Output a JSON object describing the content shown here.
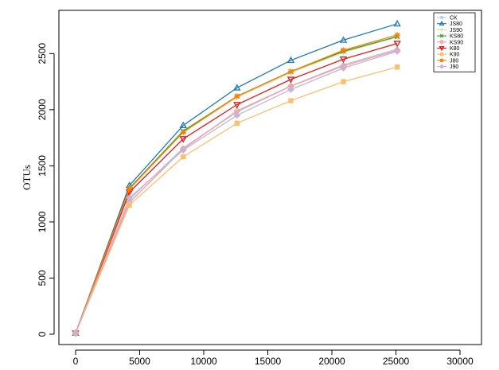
{
  "chart_data": {
    "type": "line",
    "title": "",
    "xlabel": "",
    "ylabel": "OTUs",
    "xlim": [
      0,
      30000
    ],
    "ylim": [
      0,
      2800
    ],
    "x_ticks": [
      0,
      5000,
      10000,
      15000,
      20000,
      25000,
      30000
    ],
    "y_ticks": [
      0,
      500,
      1000,
      1500,
      2000,
      2500
    ],
    "x": [
      0,
      4200,
      8400,
      12600,
      16800,
      20900,
      25100
    ],
    "grid": false,
    "legend_position": "top-right",
    "series": [
      {
        "name": "CK",
        "color": "#a6cee3",
        "marker": "circle",
        "values": [
          10,
          1200,
          1660,
          1980,
          2210,
          2400,
          2540
        ]
      },
      {
        "name": "JS80",
        "color": "#1f78b4",
        "marker": "triangle-up",
        "values": [
          10,
          1325,
          1860,
          2195,
          2440,
          2620,
          2765
        ]
      },
      {
        "name": "JS90",
        "color": "#d9d9a3",
        "marker": "plus",
        "values": [
          10,
          1290,
          1800,
          2110,
          2330,
          2510,
          2650
        ]
      },
      {
        "name": "KS80",
        "color": "#33a02c",
        "marker": "cross",
        "values": [
          10,
          1300,
          1810,
          2120,
          2340,
          2520,
          2650
        ]
      },
      {
        "name": "KS90",
        "color": "#fb9a99",
        "marker": "diamond-open",
        "values": [
          10,
          1175,
          1650,
          1990,
          2210,
          2390,
          2530
        ]
      },
      {
        "name": "K80",
        "color": "#e31a1c",
        "marker": "triangle-down",
        "values": [
          10,
          1265,
          1740,
          2045,
          2270,
          2450,
          2590
        ]
      },
      {
        "name": "K90",
        "color": "#fdbf6f",
        "marker": "square",
        "values": [
          10,
          1150,
          1580,
          1880,
          2080,
          2250,
          2380
        ]
      },
      {
        "name": "J80",
        "color": "#ff7f00",
        "marker": "asterisk",
        "values": [
          10,
          1295,
          1800,
          2120,
          2340,
          2530,
          2665
        ]
      },
      {
        "name": "J90",
        "color": "#cab2d6",
        "marker": "diamond-filled",
        "values": [
          10,
          1215,
          1640,
          1950,
          2180,
          2370,
          2520
        ]
      }
    ]
  }
}
